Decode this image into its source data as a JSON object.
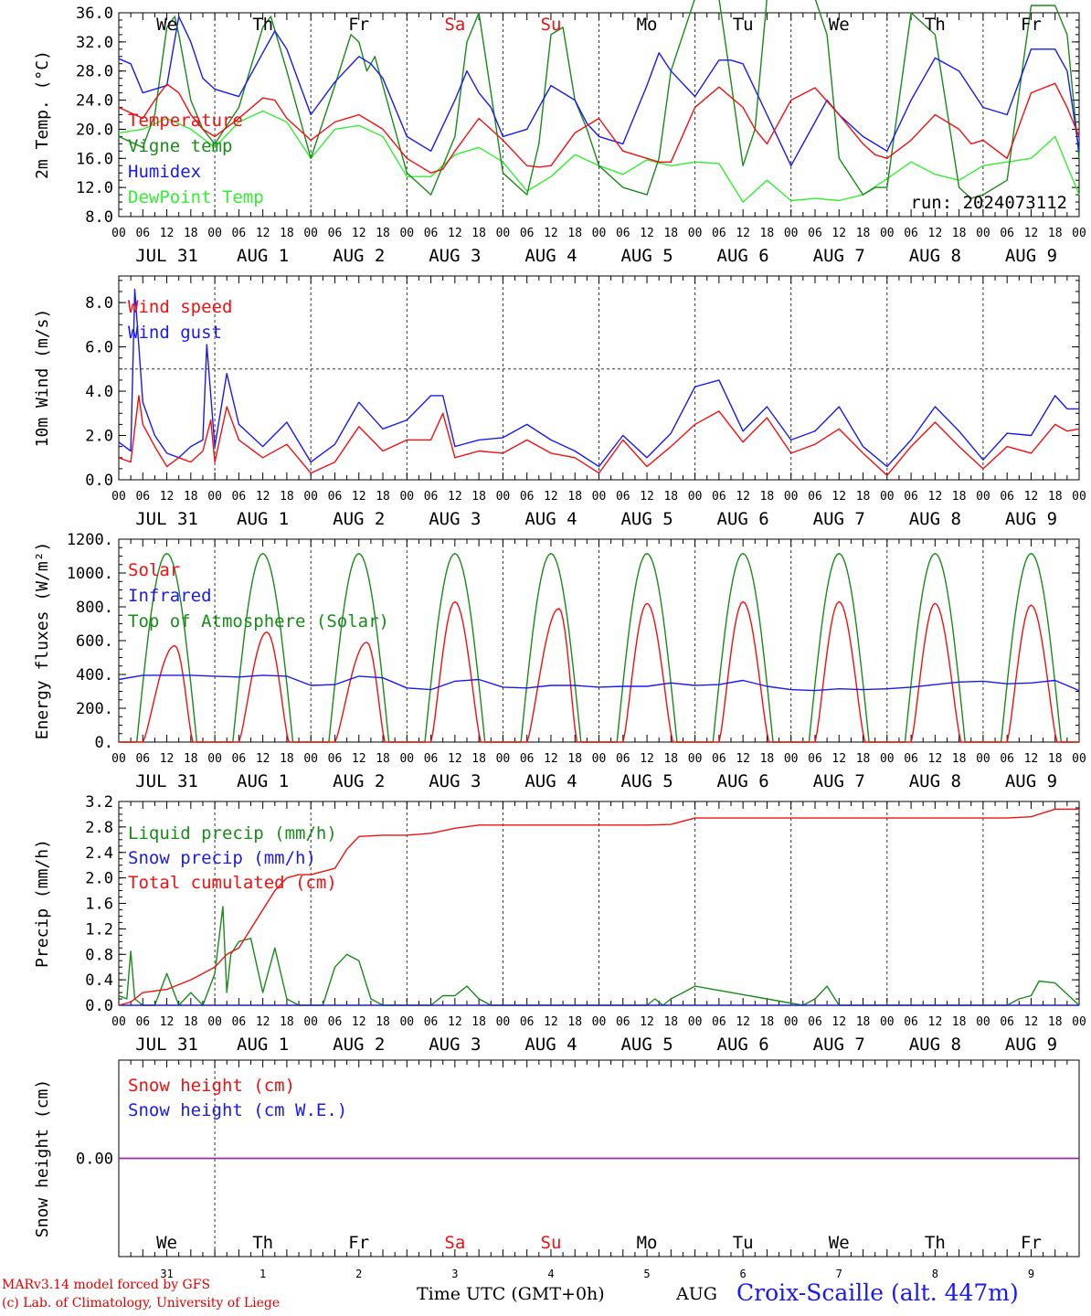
{
  "colors": {
    "red": "#ee1111",
    "green": "#1a8a1a",
    "blue": "#1a1aee",
    "lightgreen": "#33ee33",
    "purple": "#8833aa",
    "axis": "#000000",
    "weekend": "#ee1111"
  },
  "weekdays": [
    {
      "label": "We",
      "weekend": false
    },
    {
      "label": "Th",
      "weekend": false
    },
    {
      "label": "Fr",
      "weekend": false
    },
    {
      "label": "Sa",
      "weekend": true
    },
    {
      "label": "Su",
      "weekend": true
    },
    {
      "label": "Mo",
      "weekend": false
    },
    {
      "label": "Tu",
      "weekend": false
    },
    {
      "label": "We",
      "weekend": false
    },
    {
      "label": "Th",
      "weekend": false
    },
    {
      "label": "Fr",
      "weekend": false
    }
  ],
  "date_labels": [
    "JUL 31",
    "AUG  1",
    "AUG  2",
    "AUG  3",
    "AUG  4",
    "AUG  5",
    "AUG  6",
    "AUG  7",
    "AUG  8",
    "AUG  9"
  ],
  "hour_labels": [
    "00",
    "06",
    "12",
    "18"
  ],
  "day_numbers": [
    "31",
    "1",
    "2",
    "3",
    "4",
    "5",
    "6",
    "7",
    "8",
    "9"
  ],
  "footer": {
    "credit_line1": "MARv3.14 model forced by GFS",
    "credit_line2": "(c) Lab. of Climatology, University of Liege",
    "time_axis": "Time UTC (GMT+0h)",
    "month": "AUG",
    "station": "Croix-Scaille (alt. 447m)"
  },
  "chart_data": [
    {
      "type": "line",
      "ylabel": "2m Temp. (°C)",
      "ylim": [
        8,
        36
      ],
      "yticks": [
        "8.0",
        "12.0",
        "16.0",
        "20.0",
        "24.0",
        "28.0",
        "32.0",
        "36.0"
      ],
      "run_label": "run: 2024073112",
      "x_unit": "hours from 2024-07-31 00 UTC",
      "series": [
        {
          "name": "Temperature",
          "color": "red",
          "x": [
            0,
            6,
            9,
            12,
            15,
            18,
            21,
            24,
            30,
            36,
            39,
            42,
            48,
            54,
            60,
            66,
            72,
            78,
            81,
            84,
            90,
            96,
            102,
            105,
            108,
            114,
            120,
            126,
            132,
            135,
            138,
            144,
            150,
            156,
            159,
            162,
            168,
            174,
            180,
            186,
            189,
            192,
            198,
            204,
            210,
            213,
            216,
            222,
            228,
            234,
            237,
            240
          ],
          "y": [
            23,
            21.5,
            24,
            26.2,
            25,
            22,
            20,
            19,
            21.5,
            24.3,
            24,
            21.5,
            18.5,
            21,
            22,
            20,
            16,
            14,
            14.5,
            17,
            21.5,
            18.5,
            15,
            14.8,
            15,
            19.5,
            21.5,
            17,
            16,
            15.5,
            15.5,
            23,
            25.8,
            23,
            20,
            18,
            24,
            25.7,
            22,
            18,
            16.5,
            16,
            18.5,
            22,
            20,
            18,
            18.5,
            16,
            25,
            26.3,
            23,
            19
          ]
        },
        {
          "name": "Vigne temp",
          "color": "green",
          "x": [
            0,
            6,
            9,
            12,
            14,
            15,
            18,
            21,
            24,
            30,
            36,
            38,
            42,
            48,
            54,
            58,
            60,
            62,
            64,
            66,
            72,
            78,
            84,
            87,
            90,
            93,
            96,
            102,
            105,
            108,
            111,
            114,
            117,
            120,
            126,
            132,
            135,
            138,
            144,
            150,
            156,
            159,
            162,
            168,
            174,
            177,
            180,
            186,
            189,
            192,
            198,
            204,
            210,
            213,
            216,
            222,
            228,
            234,
            237,
            240
          ],
          "y": [
            19,
            17.5,
            22,
            34,
            35.5,
            33,
            24,
            20,
            18,
            23,
            34,
            35.5,
            28,
            16,
            26,
            33,
            32,
            28,
            30,
            26,
            14,
            11,
            19,
            32,
            36,
            25,
            14,
            11,
            18,
            33,
            34,
            24,
            20,
            15,
            12,
            11,
            16,
            28,
            38,
            38,
            15,
            20,
            38,
            38,
            38,
            33,
            16,
            11,
            12,
            12,
            36,
            33,
            12,
            10.5,
            11,
            13,
            37,
            37,
            33,
            16
          ]
        },
        {
          "name": "Humidex",
          "color": "blue",
          "x": [
            0,
            3,
            6,
            12,
            15,
            18,
            21,
            24,
            30,
            36,
            39,
            42,
            48,
            54,
            60,
            63,
            66,
            72,
            78,
            84,
            87,
            90,
            93,
            96,
            102,
            105,
            108,
            114,
            117,
            120,
            126,
            132,
            135,
            138,
            144,
            150,
            153,
            156,
            162,
            168,
            174,
            177,
            180,
            186,
            189,
            192,
            198,
            204,
            210,
            216,
            222,
            228,
            234,
            237,
            240
          ],
          "y": [
            29.7,
            29,
            25,
            26,
            35.5,
            32,
            27,
            25.5,
            24.5,
            30.5,
            33.5,
            31,
            22,
            26.5,
            30,
            29,
            27,
            19,
            17,
            24,
            28,
            25,
            23,
            19,
            20,
            23,
            26,
            24,
            20.8,
            19,
            18,
            26,
            30.5,
            28,
            24.5,
            29.5,
            29.5,
            29,
            22,
            15,
            21,
            24,
            22,
            19,
            18,
            17,
            24,
            29.8,
            28,
            23,
            22,
            31,
            31,
            28,
            17
          ]
        },
        {
          "name": "DewPoint Temp",
          "color": "lightgreen",
          "x": [
            0,
            6,
            12,
            18,
            24,
            30,
            36,
            42,
            48,
            54,
            60,
            66,
            72,
            78,
            84,
            90,
            96,
            102,
            108,
            114,
            120,
            126,
            132,
            138,
            144,
            150,
            156,
            162,
            168,
            174,
            180,
            186,
            192,
            198,
            204,
            210,
            216,
            222,
            228,
            234,
            240
          ],
          "y": [
            19.5,
            20,
            21.5,
            20,
            17.5,
            21,
            22.5,
            21,
            16,
            20,
            20.5,
            19,
            13.5,
            13.5,
            16.5,
            17.5,
            15.5,
            11.5,
            13.5,
            16.5,
            15,
            13.8,
            15.8,
            15,
            15.5,
            15.3,
            10,
            13,
            10.2,
            10.5,
            10.2,
            11,
            13.2,
            15.5,
            13.8,
            13,
            15,
            15.5,
            16,
            19,
            11
          ]
        }
      ]
    },
    {
      "type": "line",
      "ylabel": "10m Wind (m/s)",
      "ylim": [
        0,
        9.2
      ],
      "yticks": [
        "0.0",
        "2.0",
        "4.0",
        "6.0",
        "8.0"
      ],
      "reference_line": 5,
      "x_unit": "hours from 2024-07-31 00 UTC",
      "series": [
        {
          "name": "Wind speed",
          "color": "red",
          "x": [
            0,
            3,
            5,
            6,
            9,
            12,
            15,
            18,
            21,
            23,
            24,
            27,
            30,
            36,
            42,
            48,
            54,
            60,
            66,
            72,
            78,
            81,
            84,
            90,
            96,
            102,
            108,
            114,
            120,
            126,
            132,
            138,
            144,
            150,
            156,
            162,
            168,
            174,
            180,
            186,
            192,
            198,
            204,
            210,
            216,
            222,
            228,
            234,
            237,
            240
          ],
          "y": [
            1,
            0.8,
            3.8,
            2.5,
            1.5,
            0.6,
            1,
            0.8,
            1.3,
            2.7,
            0.8,
            3.3,
            1.8,
            1,
            1.6,
            0.3,
            0.8,
            2.4,
            1.3,
            1.8,
            1.8,
            3,
            1,
            1.3,
            1.2,
            1.8,
            1.2,
            1,
            0.3,
            1.8,
            0.6,
            1.5,
            2.5,
            3.1,
            1.7,
            2.8,
            1.2,
            1.6,
            2.3,
            1.2,
            0.2,
            1.5,
            2.6,
            1.5,
            0.5,
            1.5,
            1.2,
            2.5,
            2.2,
            2.3
          ]
        },
        {
          "name": "Wind gust",
          "color": "blue",
          "x": [
            0,
            3,
            4,
            6,
            9,
            12,
            15,
            18,
            21,
            22,
            24,
            27,
            30,
            36,
            42,
            48,
            54,
            60,
            66,
            72,
            78,
            81,
            84,
            90,
            96,
            102,
            108,
            114,
            120,
            126,
            132,
            138,
            144,
            150,
            156,
            162,
            168,
            174,
            180,
            186,
            192,
            198,
            204,
            210,
            216,
            222,
            228,
            234,
            237,
            240
          ],
          "y": [
            1.7,
            1.3,
            8.6,
            3.5,
            2,
            1.2,
            1,
            1.5,
            1.8,
            6.1,
            1.5,
            4.8,
            2.5,
            1.5,
            2.6,
            0.8,
            1.6,
            3.5,
            2.3,
            2.7,
            3.8,
            3.8,
            1.5,
            1.8,
            1.9,
            2.5,
            1.8,
            1.3,
            0.6,
            2,
            1,
            2.1,
            4.2,
            4.5,
            2.2,
            3.3,
            1.8,
            2.2,
            3.3,
            1.5,
            0.6,
            1.8,
            3.3,
            2.2,
            0.9,
            2.1,
            2,
            3.8,
            3.2,
            3.2
          ]
        }
      ]
    },
    {
      "type": "line",
      "ylabel": "Energy fluxes (W/m²)",
      "ylim": [
        0,
        1200
      ],
      "yticks": [
        "0.",
        "200.",
        "400.",
        "600.",
        "800.",
        "1000.",
        "1200."
      ],
      "x_unit": "hours from 2024-07-31 00 UTC",
      "toa_peak": 1115,
      "toa_sunrise_hour": 4.5,
      "toa_sunset_hour": 19.5,
      "series": [
        {
          "name": "Solar",
          "color": "red",
          "daily_peaks": [
            570,
            650,
            590,
            830,
            790,
            820,
            830,
            830,
            820,
            810
          ],
          "daily_peak_hour": [
            14,
            13,
            14,
            12,
            14,
            12,
            12,
            12,
            12,
            12
          ]
        },
        {
          "name": "Infrared",
          "color": "blue",
          "x": [
            0,
            6,
            12,
            18,
            24,
            30,
            36,
            42,
            48,
            54,
            60,
            66,
            72,
            78,
            84,
            90,
            96,
            102,
            108,
            114,
            120,
            126,
            132,
            138,
            144,
            150,
            156,
            162,
            168,
            174,
            180,
            186,
            192,
            198,
            204,
            210,
            216,
            222,
            228,
            234,
            240
          ],
          "y": [
            370,
            395,
            395,
            395,
            390,
            385,
            395,
            390,
            335,
            340,
            390,
            380,
            320,
            310,
            360,
            370,
            325,
            320,
            335,
            335,
            325,
            330,
            330,
            350,
            335,
            340,
            365,
            330,
            310,
            305,
            315,
            310,
            315,
            325,
            340,
            355,
            360,
            345,
            350,
            365,
            305
          ]
        },
        {
          "name": "Top of Atmosphere (Solar)",
          "color": "green"
        }
      ]
    },
    {
      "type": "line",
      "ylabel": "Precip (mm/h)",
      "ylim": [
        0,
        3.2
      ],
      "yticks": [
        "0.0",
        "0.4",
        "0.8",
        "1.2",
        "1.6",
        "2.0",
        "2.4",
        "2.8",
        "3.2"
      ],
      "x_unit": "hours from 2024-07-31 00 UTC",
      "series": [
        {
          "name": "Liquid precip (mm/h)",
          "color": "green",
          "x": [
            0,
            2,
            3,
            4,
            6,
            9,
            12,
            15,
            18,
            21,
            24,
            26,
            27,
            28,
            30,
            33,
            36,
            39,
            42,
            45,
            48,
            51,
            54,
            57,
            60,
            63,
            66,
            69,
            72,
            78,
            81,
            84,
            87,
            90,
            93,
            96,
            132,
            134,
            136,
            138,
            141,
            144,
            171,
            174,
            177,
            180,
            222,
            225,
            228,
            230,
            234,
            240
          ],
          "y": [
            0.15,
            0.1,
            0.85,
            0.1,
            0,
            0,
            0.5,
            0,
            0.2,
            0,
            0.5,
            1.55,
            0.2,
            0.8,
            1,
            1.05,
            0.2,
            0.9,
            0.1,
            0,
            0,
            0,
            0.6,
            0.8,
            0.7,
            0.1,
            0,
            0,
            0,
            0,
            0.15,
            0.15,
            0.3,
            0.1,
            0,
            0,
            0,
            0.1,
            0,
            0.1,
            0.2,
            0.3,
            0,
            0.1,
            0.3,
            0,
            0,
            0.1,
            0.15,
            0.38,
            0.35,
            0
          ]
        },
        {
          "name": "Snow precip (mm/h)",
          "color": "blue",
          "x": [
            0,
            240
          ],
          "y": [
            0,
            0
          ]
        },
        {
          "name": "Total cumulated (cm)",
          "color": "red",
          "x": [
            0,
            3,
            6,
            12,
            18,
            21,
            24,
            27,
            30,
            33,
            36,
            39,
            42,
            45,
            48,
            54,
            57,
            60,
            66,
            72,
            78,
            84,
            90,
            96,
            132,
            138,
            144,
            174,
            180,
            222,
            228,
            234,
            240
          ],
          "y": [
            0,
            0.05,
            0.2,
            0.25,
            0.4,
            0.5,
            0.6,
            0.8,
            0.9,
            1.2,
            1.5,
            1.8,
            2,
            2.05,
            2.05,
            2.15,
            2.45,
            2.65,
            2.67,
            2.67,
            2.7,
            2.78,
            2.83,
            2.83,
            2.83,
            2.84,
            2.94,
            2.94,
            2.94,
            2.94,
            2.96,
            3.08,
            3.08
          ]
        }
      ]
    },
    {
      "type": "line",
      "ylabel": "Snow height (cm)",
      "ylim": [
        -1,
        1
      ],
      "yticks": [
        "0.00"
      ],
      "x_unit": "hours from 2024-07-31 00 UTC",
      "series": [
        {
          "name": "Snow height (cm)",
          "color": "red",
          "x": [
            0,
            240
          ],
          "y": [
            0,
            0
          ]
        },
        {
          "name": "Snow height (cm W.E.)",
          "color": "blue",
          "x": [
            0,
            240
          ],
          "y": [
            0,
            0
          ]
        }
      ]
    }
  ]
}
